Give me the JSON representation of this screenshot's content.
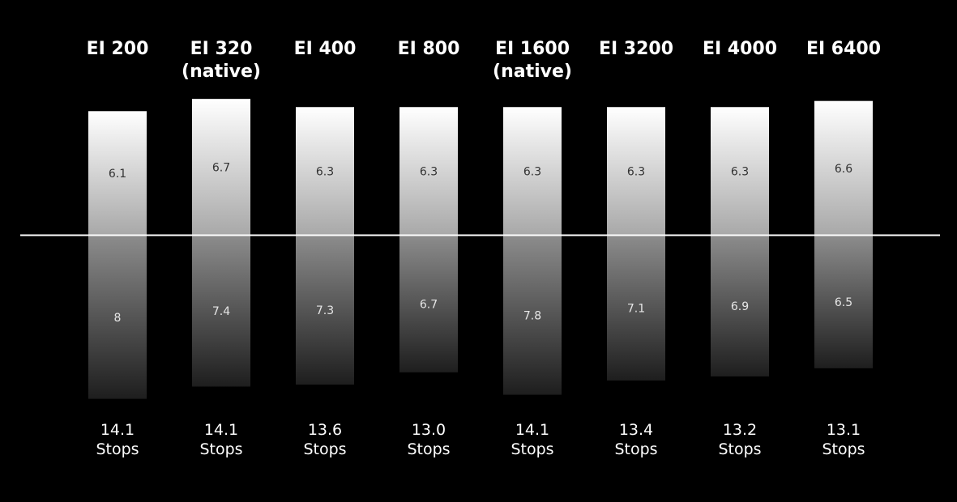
{
  "chart_data": {
    "type": "bar",
    "categories": [
      [
        "EI 200"
      ],
      [
        "EI 320",
        "(native)"
      ],
      [
        "EI 400"
      ],
      [
        "EI 800"
      ],
      [
        "EI 1600",
        "(native)"
      ],
      [
        "EI 3200"
      ],
      [
        "EI 4000"
      ],
      [
        "EI 6400"
      ]
    ],
    "series": [
      {
        "values": [
          6.1,
          6.7,
          6.3,
          6.3,
          6.3,
          6.3,
          6.3,
          6.6
        ]
      },
      {
        "values": [
          8,
          7.4,
          7.3,
          6.7,
          7.8,
          7.1,
          6.9,
          6.5
        ]
      }
    ],
    "totals": [
      "14.1",
      "14.1",
      "13.6",
      "13.0",
      "14.1",
      "13.4",
      "13.2",
      "13.1"
    ],
    "totals_unit": "Stops",
    "baseline": 0,
    "colors": {
      "background": "#000000",
      "bar_top_light": "#ffffff",
      "bar_top_mid": "#a8a8a8",
      "bar_bottom_mid": "#8c8c8c",
      "bar_bottom_dark": "#1e1e1e",
      "baseline": "#ffffff"
    }
  }
}
